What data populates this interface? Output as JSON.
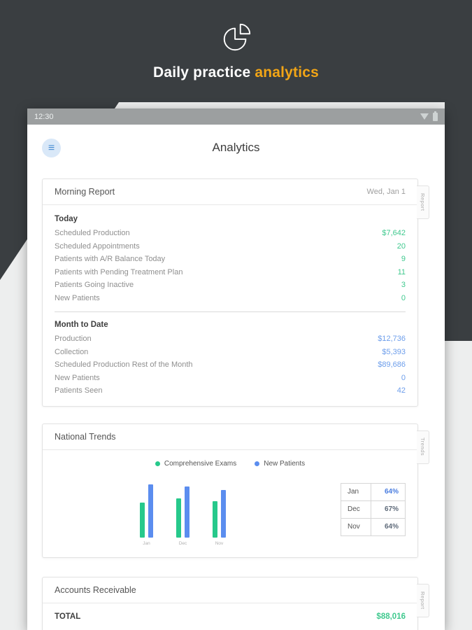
{
  "hero": {
    "title_prefix": "Daily practice ",
    "title_accent": "analytics",
    "accent_color": "#f2a516"
  },
  "statusbar": {
    "time": "12:30"
  },
  "app": {
    "title": "Analytics",
    "menu_glyph": "≡"
  },
  "morning_report": {
    "title": "Morning Report",
    "date": "Wed, Jan 1",
    "side_tab": "Report",
    "sections": [
      {
        "heading": "Today",
        "value_color": "#3fc98e",
        "rows": [
          {
            "label": "Scheduled Production",
            "value": "$7,642"
          },
          {
            "label": "Scheduled Appointments",
            "value": "20"
          },
          {
            "label": "Patients with A/R Balance Today",
            "value": "9"
          },
          {
            "label": "Patients with Pending Treatment Plan",
            "value": "11"
          },
          {
            "label": "Patients Going Inactive",
            "value": "3"
          },
          {
            "label": "New Patients",
            "value": "0"
          }
        ]
      },
      {
        "heading": "Month to Date",
        "value_color": "#6d9eeb",
        "rows": [
          {
            "label": "Production",
            "value": "$12,736"
          },
          {
            "label": "Collection",
            "value": "$5,393"
          },
          {
            "label": "Scheduled Production Rest of the Month",
            "value": "$89,686"
          },
          {
            "label": "New Patients",
            "value": "0"
          },
          {
            "label": "Patients Seen",
            "value": "42"
          }
        ]
      }
    ]
  },
  "national_trends": {
    "title": "National Trends",
    "side_tab": "Trends",
    "legend": [
      {
        "label": "Comprehensive Exams",
        "color": "#26c98b"
      },
      {
        "label": "New Patients",
        "color": "#5b8def"
      }
    ],
    "chart_data": {
      "type": "bar",
      "title": "National Trends",
      "categories": [
        "Jan",
        "Dec",
        "Nov"
      ],
      "series": [
        {
          "name": "Comprehensive Exams",
          "color": "#26c98b",
          "values": [
            50,
            56,
            52
          ]
        },
        {
          "name": "New Patients",
          "color": "#5b8def",
          "values": [
            76,
            73,
            68
          ]
        }
      ],
      "xlabel": "",
      "ylabel": "",
      "ylim": [
        0,
        80
      ],
      "grid": false,
      "legend_position": "top",
      "note": "no numeric axis shown; values are relative bar heights"
    },
    "table": [
      {
        "month": "Jan",
        "value": "64%",
        "highlight": true
      },
      {
        "month": "Dec",
        "value": "67%",
        "highlight": false
      },
      {
        "month": "Nov",
        "value": "64%",
        "highlight": false
      }
    ]
  },
  "accounts_receivable": {
    "title": "Accounts Receivable",
    "side_tab": "Report",
    "total_label": "TOTAL",
    "total_value": "$88,016",
    "total_color": "#3fc98e"
  }
}
